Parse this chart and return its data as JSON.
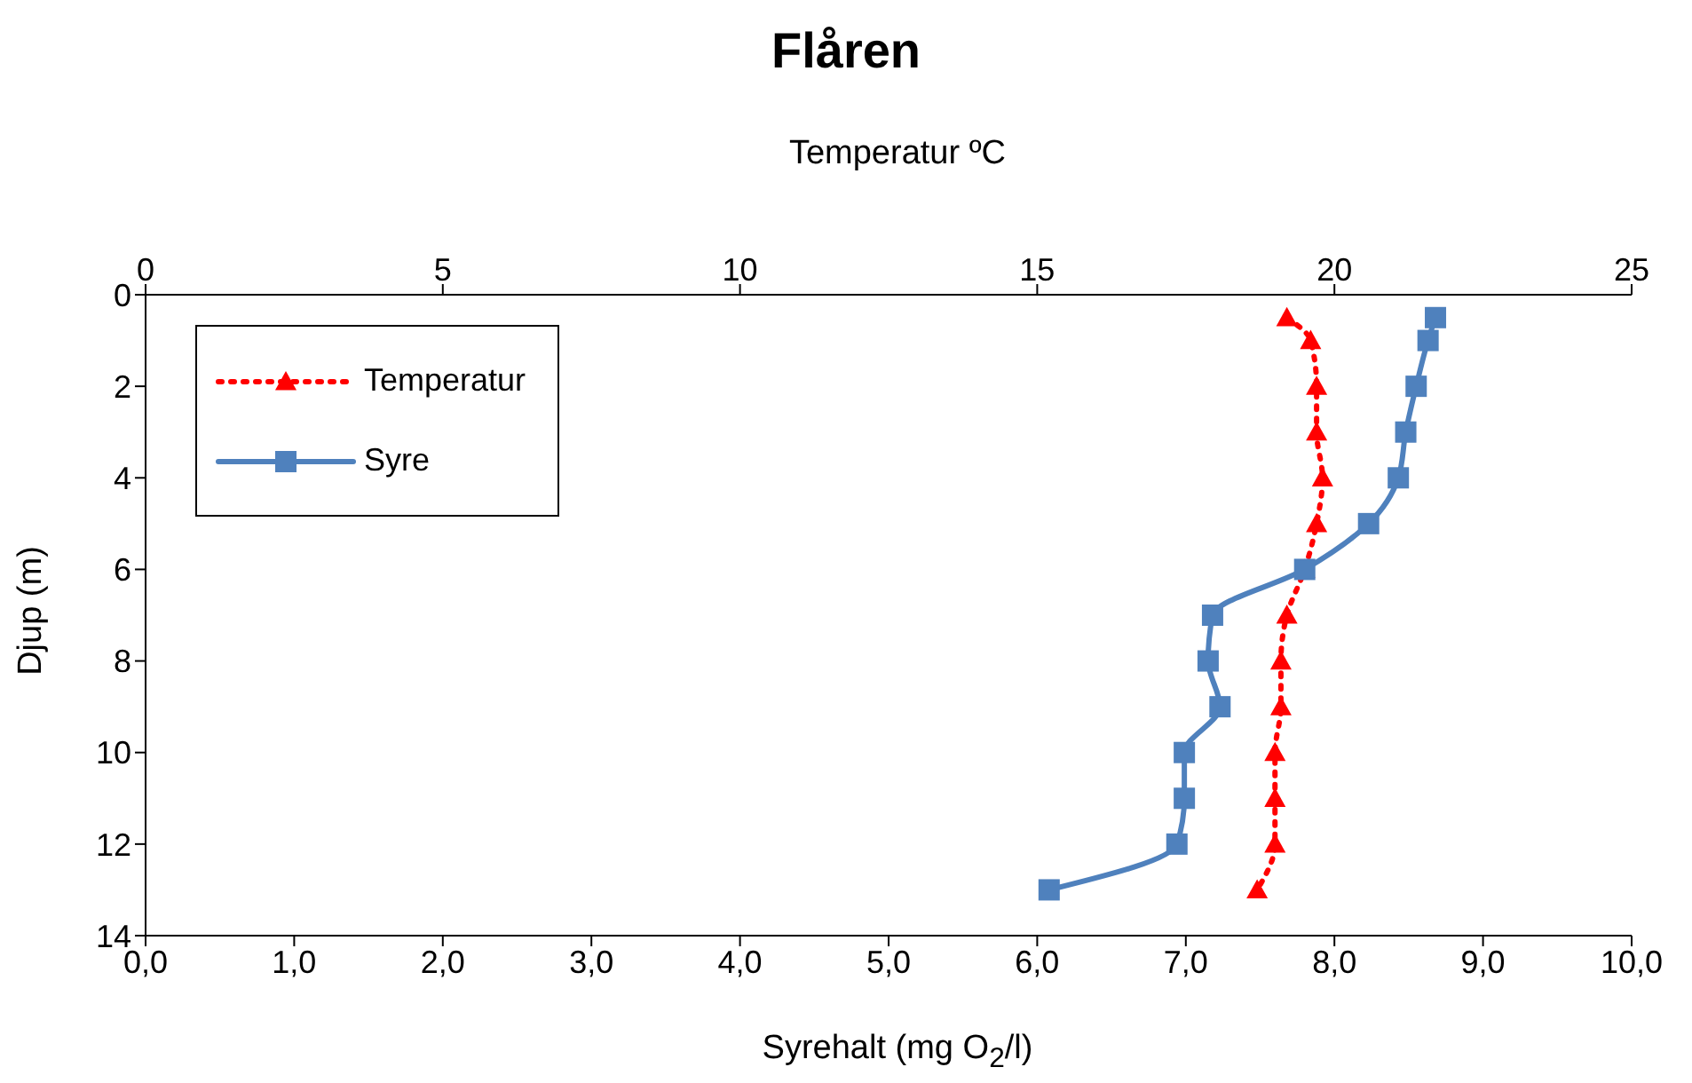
{
  "chart_data": {
    "type": "line",
    "title": "Flåren",
    "xlabel": "Syrehalt (mg O$_{2}$/l)",
    "x2label": "Temperatur ºC",
    "ylabel": "Djup (m)",
    "xlim": [
      0,
      10
    ],
    "xticks": [
      {
        "value": 0,
        "label": "0,0"
      },
      {
        "value": 1,
        "label": "1,0"
      },
      {
        "value": 2,
        "label": "2,0"
      },
      {
        "value": 3,
        "label": "3,0"
      },
      {
        "value": 4,
        "label": "4,0"
      },
      {
        "value": 5,
        "label": "5,0"
      },
      {
        "value": 6,
        "label": "6,0"
      },
      {
        "value": 7,
        "label": "7,0"
      },
      {
        "value": 8,
        "label": "8,0"
      },
      {
        "value": 9,
        "label": "9,0"
      },
      {
        "value": 10,
        "label": "10,0"
      }
    ],
    "x2lim": [
      0,
      25
    ],
    "x2ticks": [
      0,
      5,
      10,
      15,
      20,
      25
    ],
    "ylim": [
      14,
      0
    ],
    "yticks": [
      0,
      2,
      4,
      6,
      8,
      10,
      12,
      14
    ],
    "legend": "top left",
    "series": [
      {
        "name": "Temperatur",
        "color": "#ff0000",
        "axis": "x2",
        "marker": "triangle",
        "line_style": "dotted",
        "x": [
          19.2,
          19.6,
          19.7,
          19.7,
          19.8,
          19.7,
          19.5,
          19.2,
          19.1,
          19.1,
          19.0,
          19.0,
          19.0,
          18.7
        ],
        "values": [
          0.5,
          1,
          2,
          3,
          4,
          5,
          6,
          7,
          8,
          9,
          10,
          11,
          12,
          13
        ]
      },
      {
        "name": "Syre",
        "color": "#4f81bd",
        "marker": "square",
        "line_style": "solid",
        "x": [
          8.68,
          8.63,
          8.55,
          8.48,
          8.43,
          8.23,
          7.8,
          7.18,
          7.15,
          7.23,
          6.99,
          6.99,
          6.94,
          6.08
        ],
        "values": [
          0.5,
          1,
          2,
          3,
          4,
          5,
          6,
          7,
          8,
          9,
          10,
          11,
          12,
          13
        ]
      }
    ]
  }
}
